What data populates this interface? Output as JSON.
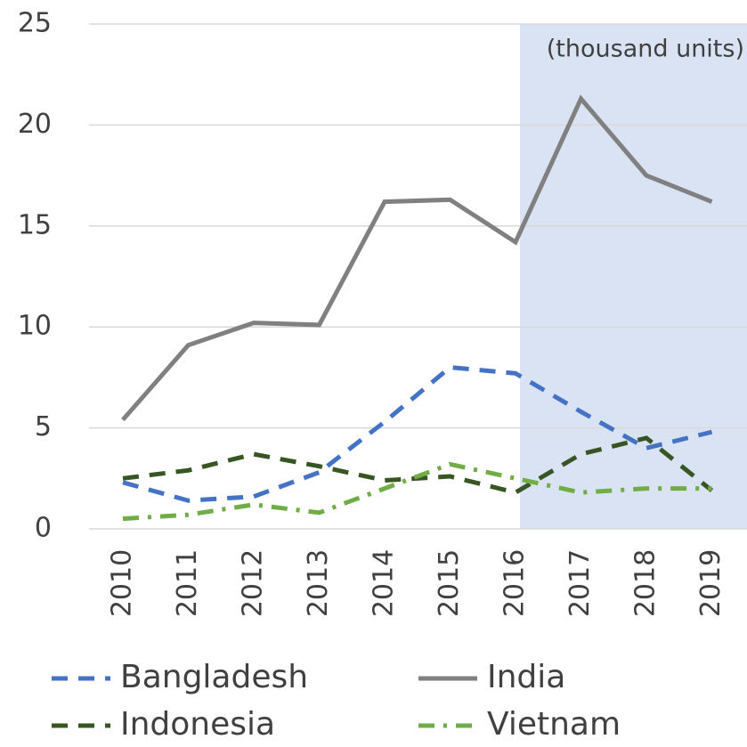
{
  "chart_data": {
    "type": "line",
    "annotation": "(thousand units)",
    "highlight_from": "2016",
    "highlight_color": "#dae3f3",
    "categories": [
      "2010",
      "2011",
      "2012",
      "2013",
      "2014",
      "2015",
      "2016",
      "2017",
      "2018",
      "2019"
    ],
    "series": [
      {
        "name": "Bangladesh",
        "color": "#4472c4",
        "dash": "dash",
        "values": [
          2.3,
          1.4,
          1.6,
          2.8,
          5.3,
          8.0,
          7.7,
          5.8,
          4.0,
          4.8
        ]
      },
      {
        "name": "India",
        "color": "#808080",
        "dash": "solid",
        "values": [
          5.4,
          9.1,
          10.2,
          10.1,
          16.2,
          16.3,
          14.2,
          21.3,
          17.5,
          16.2
        ]
      },
      {
        "name": "Indonesia",
        "color": "#375623",
        "dash": "dash",
        "values": [
          2.5,
          2.9,
          3.7,
          3.1,
          2.4,
          2.6,
          1.8,
          3.7,
          4.5,
          1.9
        ]
      },
      {
        "name": "Vietnam",
        "color": "#70ad47",
        "dash": "dashdot",
        "values": [
          0.5,
          0.7,
          1.2,
          0.8,
          2.0,
          3.2,
          2.5,
          1.8,
          2.0,
          2.0
        ]
      }
    ],
    "ylim": [
      0,
      25
    ],
    "yticks": [
      0,
      5,
      10,
      15,
      20,
      25
    ],
    "grid": true,
    "legend": "bottom"
  }
}
